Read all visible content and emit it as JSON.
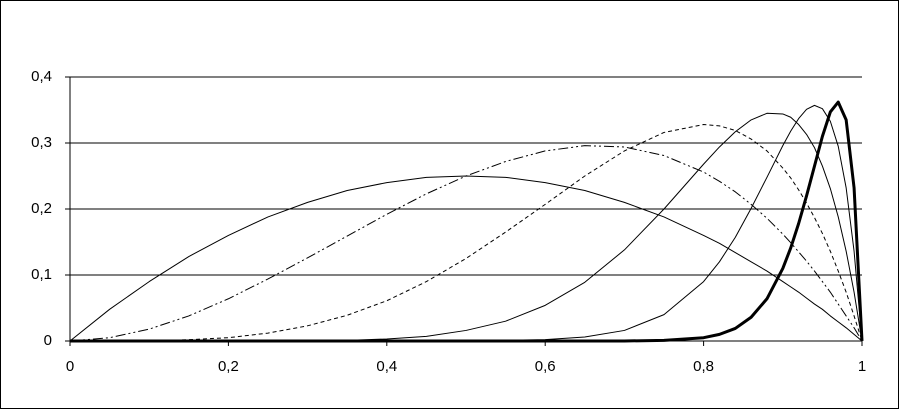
{
  "chart_data": {
    "type": "line",
    "x": [
      0,
      0.05,
      0.1,
      0.15,
      0.2,
      0.25,
      0.3,
      0.35,
      0.4,
      0.45,
      0.5,
      0.55,
      0.6,
      0.65,
      0.7,
      0.75,
      0.8,
      0.82,
      0.84,
      0.86,
      0.88,
      0.9,
      0.91,
      0.92,
      0.93,
      0.94,
      0.95,
      0.96,
      0.97,
      0.98,
      0.99,
      1
    ],
    "series": [
      {
        "color": "#000000",
        "line_width": 1,
        "line_style": "solid",
        "values": [
          0,
          0.048,
          0.09,
          0.128,
          0.16,
          0.188,
          0.21,
          0.228,
          0.24,
          0.248,
          0.25,
          0.248,
          0.24,
          0.228,
          0.21,
          0.188,
          0.16,
          0.148,
          0.134,
          0.12,
          0.106,
          0.09,
          0.082,
          0.074,
          0.065,
          0.056,
          0.048,
          0.038,
          0.029,
          0.02,
          0.01,
          0
        ]
      },
      {
        "color": "#000000",
        "line_width": 1,
        "line_style": "dash-dot-dot",
        "values": [
          0,
          0.005,
          0.018,
          0.038,
          0.064,
          0.094,
          0.126,
          0.159,
          0.192,
          0.223,
          0.25,
          0.272,
          0.288,
          0.296,
          0.294,
          0.281,
          0.256,
          0.242,
          0.226,
          0.207,
          0.186,
          0.162,
          0.149,
          0.135,
          0.121,
          0.106,
          0.09,
          0.074,
          0.056,
          0.038,
          0.02,
          0
        ]
      },
      {
        "color": "#000000",
        "line_width": 1,
        "line_style": "dash",
        "values": [
          0,
          0,
          0,
          0.002,
          0.005,
          0.012,
          0.023,
          0.039,
          0.061,
          0.09,
          0.125,
          0.165,
          0.207,
          0.25,
          0.288,
          0.316,
          0.328,
          0.326,
          0.319,
          0.306,
          0.288,
          0.262,
          0.247,
          0.229,
          0.209,
          0.187,
          0.163,
          0.136,
          0.106,
          0.074,
          0.038,
          0
        ]
      },
      {
        "color": "#000000",
        "line_width": 1,
        "line_style": "solid",
        "values": [
          0,
          0,
          0,
          0,
          0,
          0,
          0,
          0.001,
          0.003,
          0.007,
          0.016,
          0.03,
          0.054,
          0.089,
          0.138,
          0.2,
          0.268,
          0.294,
          0.317,
          0.335,
          0.345,
          0.344,
          0.339,
          0.328,
          0.313,
          0.293,
          0.265,
          0.231,
          0.188,
          0.136,
          0.074,
          0
        ]
      },
      {
        "color": "#000000",
        "line_width": 1,
        "line_style": "solid",
        "values": [
          0,
          0,
          0,
          0,
          0,
          0,
          0,
          0,
          0,
          0,
          0,
          0.001,
          0.002,
          0.006,
          0.016,
          0.04,
          0.09,
          0.12,
          0.157,
          0.201,
          0.248,
          0.296,
          0.318,
          0.337,
          0.351,
          0.357,
          0.352,
          0.333,
          0.295,
          0.232,
          0.136,
          0
        ]
      },
      {
        "color": "#000000",
        "line_width": 3,
        "line_style": "solid",
        "values": [
          0,
          0,
          0,
          0,
          0,
          0,
          0,
          0,
          0,
          0,
          0,
          0,
          0,
          0,
          0,
          0.001,
          0.005,
          0.01,
          0.019,
          0.036,
          0.064,
          0.11,
          0.141,
          0.178,
          0.22,
          0.265,
          0.31,
          0.347,
          0.362,
          0.335,
          0.232,
          0
        ]
      }
    ],
    "xlim": [
      0,
      1
    ],
    "xticks": [
      0,
      {
        "value": 0.2,
        "label": "0,2"
      },
      {
        "value": 0.4,
        "label": "0,4"
      },
      {
        "value": 0.6,
        "label": "0,6"
      },
      {
        "value": 0.8,
        "label": "0,8"
      },
      1
    ],
    "ylim": [
      0,
      0.4
    ],
    "yticks": [
      0,
      {
        "value": 0.1,
        "label": "0,1"
      },
      {
        "value": 0.2,
        "label": "0,2"
      },
      {
        "value": 0.3,
        "label": "0,3"
      },
      {
        "value": 0.4,
        "label": "0,4"
      }
    ],
    "grid": true
  }
}
